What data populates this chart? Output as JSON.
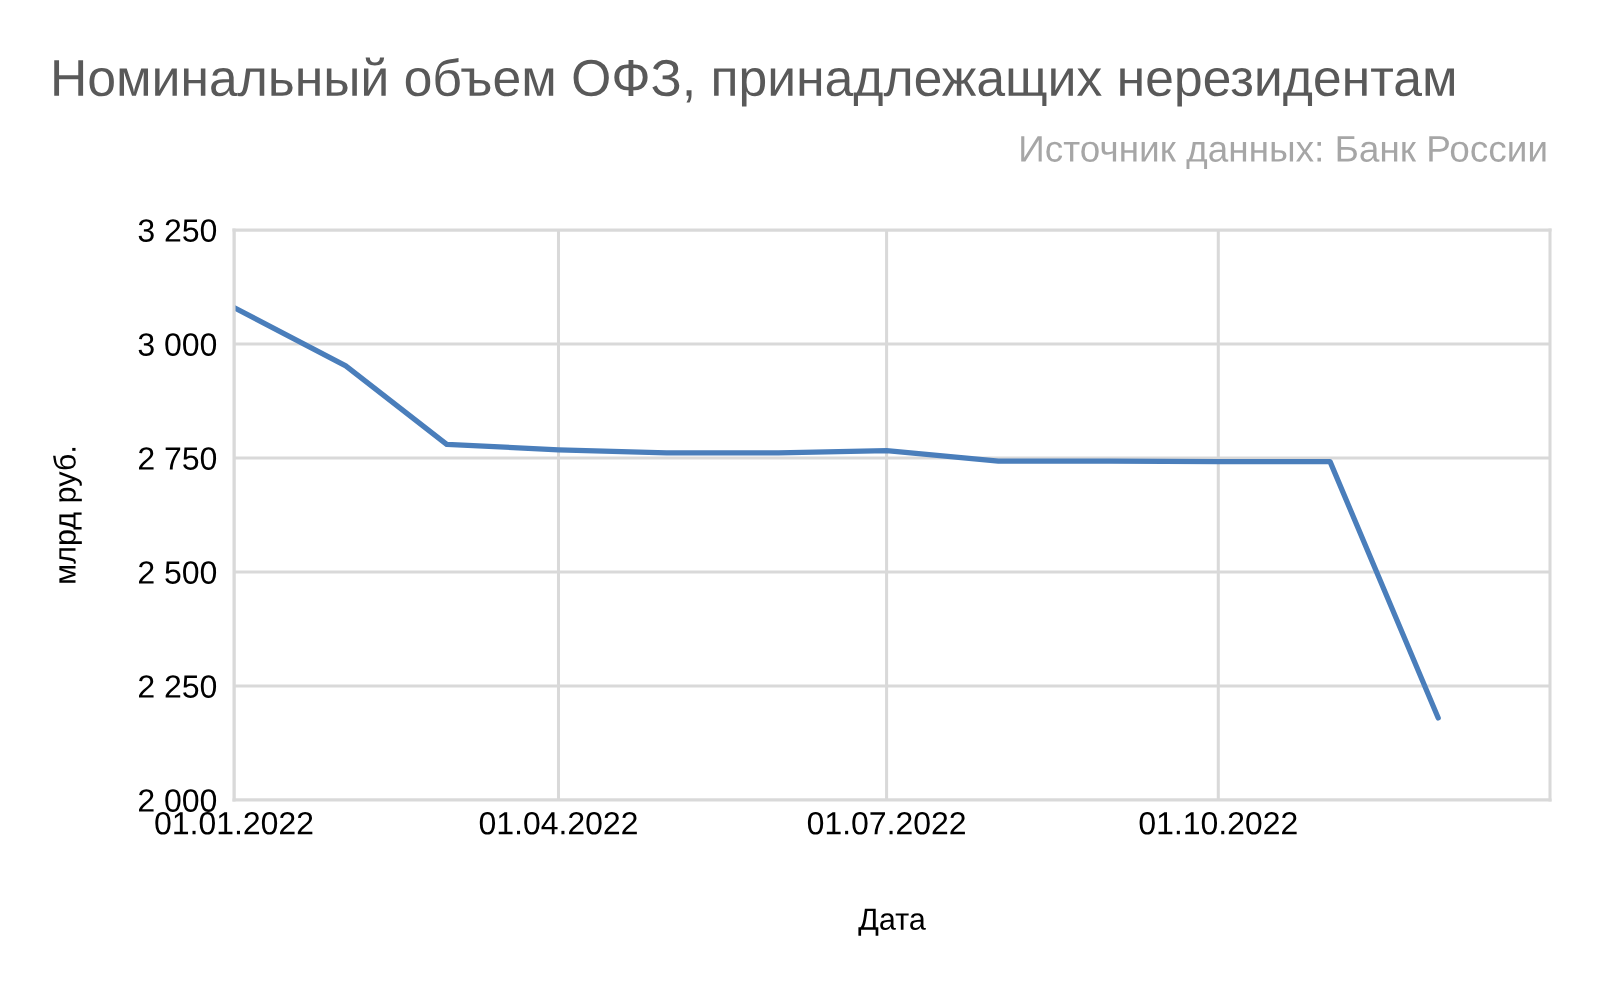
{
  "chart_data": {
    "type": "line",
    "title": "Номинальный объем ОФЗ, принадлежащих нерезидентам",
    "annotations": [
      "Источник данных: Банк России"
    ],
    "xlabel": "Дата",
    "ylabel": "млрд руб.",
    "x": [
      "2022-01-01",
      "2022-02-01",
      "2022-03-01",
      "2022-04-01",
      "2022-05-01",
      "2022-06-01",
      "2022-07-01",
      "2022-08-01",
      "2022-09-01",
      "2022-10-01",
      "2022-11-01",
      "2022-12-01"
    ],
    "series": [
      {
        "color": "#4a7ebb",
        "values": [
          3080,
          2952,
          2780,
          2768,
          2761,
          2761,
          2766,
          2743,
          2743,
          2742,
          2742,
          2180
        ]
      }
    ],
    "xlim": [
      "2022-01-01",
      "2023-01-01"
    ],
    "xticks": [
      {
        "value": "2022-01-01",
        "label": "01.01.2022"
      },
      {
        "value": "2022-04-01",
        "label": "01.04.2022"
      },
      {
        "value": "2022-07-01",
        "label": "01.07.2022"
      },
      {
        "value": "2022-10-01",
        "label": "01.10.2022"
      }
    ],
    "ylim": [
      2000,
      3250
    ],
    "yticks": [
      {
        "value": 2000,
        "label": "2 000"
      },
      {
        "value": 2250,
        "label": "2 250"
      },
      {
        "value": 2500,
        "label": "2 500"
      },
      {
        "value": 2750,
        "label": "2 750"
      },
      {
        "value": 3000,
        "label": "3 000"
      },
      {
        "value": 3250,
        "label": "3 250"
      }
    ],
    "grid": true
  }
}
